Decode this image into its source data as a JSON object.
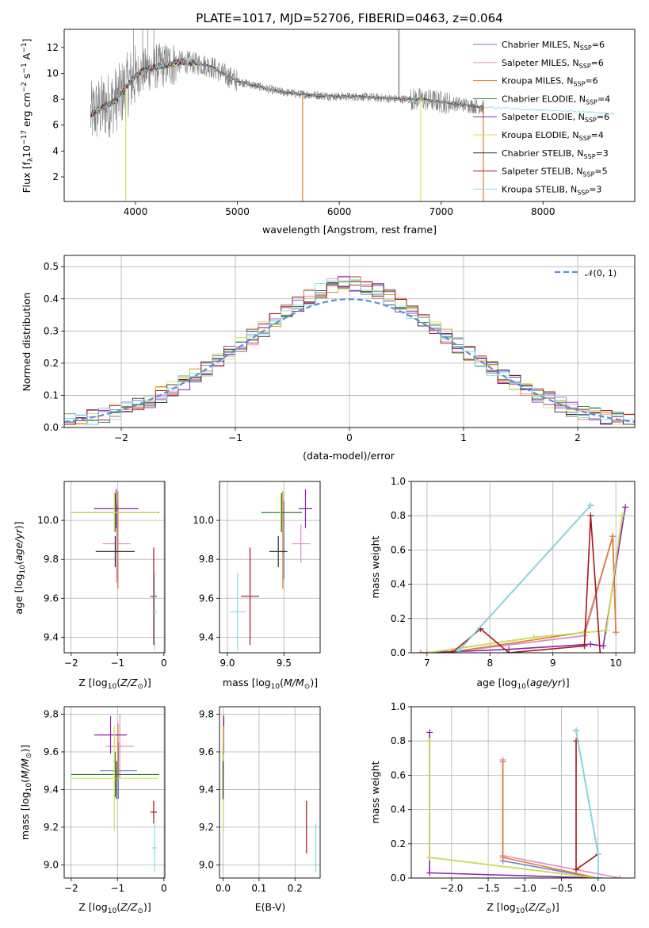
{
  "colors": {
    "spectrum_data": "#808080",
    "normal_curve": "#5b8fd9",
    "grid": "#b0b0b0",
    "models": [
      "#6a7fd6",
      "#e58ac9",
      "#e0812f",
      "#2e7d32",
      "#8e24aa",
      "#d4e157",
      "#333333",
      "#a4161a",
      "#80deea"
    ]
  },
  "models": [
    {
      "label": "Chabrier MILES, N$_{SSP}$=6",
      "text": "Chabrier MILES, N",
      "sub": "SSP",
      "n": "=6"
    },
    {
      "label": "Salpeter MILES, N$_{SSP}$=6",
      "text": "Salpeter MILES, N",
      "sub": "SSP",
      "n": "=6"
    },
    {
      "label": "Kroupa MILES, N$_{SSP}$=6",
      "text": "Kroupa MILES, N",
      "sub": "SSP",
      "n": "=6"
    },
    {
      "label": "Chabrier ELODIE, N$_{SSP}$=4",
      "text": "Chabrier ELODIE, N",
      "sub": "SSP",
      "n": "=4"
    },
    {
      "label": "Salpeter ELODIE, N$_{SSP}$=6",
      "text": "Salpeter ELODIE, N",
      "sub": "SSP",
      "n": "=6"
    },
    {
      "label": "Kroupa ELODIE, N$_{SSP}$=4",
      "text": "Kroupa ELODIE, N",
      "sub": "SSP",
      "n": "=4"
    },
    {
      "label": "Chabrier STELIB, N$_{SSP}$=3",
      "text": "Chabrier STELIB, N",
      "sub": "SSP",
      "n": "=3"
    },
    {
      "label": "Salpeter STELIB, N$_{SSP}$=5",
      "text": "Salpeter STELIB, N",
      "sub": "SSP",
      "n": "=5"
    },
    {
      "label": "Kroupa STELIB, N$_{SSP}$=3",
      "text": "Kroupa STELIB, N",
      "sub": "SSP",
      "n": "=3"
    }
  ],
  "chart_data": [
    {
      "id": "spectrum",
      "type": "line",
      "title": "PLATE=1017, MJD=52706, FIBERID=0463, z=0.064",
      "xlabel": "wavelength [Angstrom, rest frame]",
      "ylabel": "Flux [f$_\\lambda$10$^{-17}$ erg cm$^{-2}$ s$^{-1}$ A$^{-1}$]",
      "xlim": [
        3300,
        8900
      ],
      "ylim": [
        0.1,
        13.4
      ],
      "xticks": [
        4000,
        5000,
        6000,
        7000,
        8000
      ],
      "yticks": [
        2,
        4,
        6,
        8,
        10,
        12
      ],
      "continuum": {
        "x": [
          3560,
          3650,
          3750,
          3850,
          3950,
          4050,
          4150,
          4250,
          4350,
          4450,
          4550,
          4650,
          4750,
          4850,
          5000,
          5200,
          5400,
          5600,
          5800,
          6000,
          6200,
          6400,
          6600,
          6800,
          7000,
          7200,
          7400
        ],
        "y": [
          6.8,
          7.3,
          7.6,
          8.3,
          9.4,
          10.1,
          10.4,
          10.6,
          10.7,
          10.9,
          10.8,
          10.7,
          10.5,
          10.0,
          9.4,
          9.0,
          8.6,
          8.4,
          8.3,
          8.2,
          8.2,
          8.1,
          8.0,
          8.0,
          7.8,
          7.6,
          7.4
        ]
      },
      "dips": [
        {
          "x": 3905,
          "y": 0.1
        },
        {
          "x": 5640,
          "y": 0.1
        },
        {
          "x": 6800,
          "y": 0.1
        },
        {
          "x": 7415,
          "y": 0.1
        }
      ],
      "legend": "upper-right"
    },
    {
      "id": "residuals",
      "type": "histogram",
      "xlabel": "(data-model)/error",
      "ylabel": "Normed distribution",
      "xlim": [
        -2.5,
        2.5
      ],
      "ylim": [
        0,
        0.535
      ],
      "xticks": [
        -2,
        -1,
        0,
        1,
        2
      ],
      "yticks": [
        0.0,
        0.1,
        0.2,
        0.3,
        0.4,
        0.5
      ],
      "bin_width": 0.1,
      "curve_label": "$\\mathcal{N}(0,1)$",
      "legend": "upper-right"
    },
    {
      "id": "age-vs-Z",
      "type": "errorbar",
      "xlabel": "Z [log$_{10}$(Z/Z$_\\odot$)]",
      "ylabel": "age  [log$_{10}$(age/yr)]",
      "xlim": [
        -2.15,
        0.02
      ],
      "ylim": [
        9.32,
        10.2
      ],
      "xticks": [
        -2,
        -1,
        0
      ],
      "yticks": [
        9.4,
        9.6,
        9.8,
        10.0
      ],
      "points": [
        {
          "model": 0,
          "x": -1.0,
          "xerr": 0.0,
          "y": 9.9,
          "yerr": 0.2
        },
        {
          "model": 1,
          "x": -1.02,
          "xerr": 0.3,
          "y": 9.88,
          "yerr": 0.2
        },
        {
          "model": 2,
          "x": -0.99,
          "xerr": 0.0,
          "y": 9.9,
          "yerr": 0.25
        },
        {
          "model": 3,
          "x": -1.05,
          "xerr": 0.95,
          "y": 10.04,
          "yerr": 0.1
        },
        {
          "model": 4,
          "x": -1.03,
          "xerr": 0.48,
          "y": 10.06,
          "yerr": 0.1
        },
        {
          "model": 5,
          "x": -1.07,
          "xerr": 0.95,
          "y": 10.04,
          "yerr": 0.1
        },
        {
          "model": 6,
          "x": -1.05,
          "xerr": 0.42,
          "y": 9.84,
          "yerr": 0.08
        },
        {
          "model": 7,
          "x": -0.22,
          "xerr": 0.07,
          "y": 9.61,
          "yerr": 0.25
        },
        {
          "model": 8,
          "x": -0.2,
          "xerr": 0.05,
          "y": 9.53,
          "yerr": 0.2
        }
      ]
    },
    {
      "id": "age-vs-mass",
      "type": "errorbar",
      "xlabel": "mass [log$_{10}$(M/M$_\\odot$)]",
      "xlim": [
        8.93,
        9.82
      ],
      "ylim": [
        9.32,
        10.2
      ],
      "xticks": [
        9.0,
        9.5
      ],
      "yticks": [
        9.4,
        9.6,
        9.8,
        10.0
      ],
      "points": [
        {
          "model": 0,
          "x": 9.5,
          "xerr": 0.0,
          "y": 9.9,
          "yerr": 0.2
        },
        {
          "model": 1,
          "x": 9.65,
          "xerr": 0.08,
          "y": 9.88,
          "yerr": 0.1
        },
        {
          "model": 2,
          "x": 9.49,
          "xerr": 0.0,
          "y": 9.9,
          "yerr": 0.25
        },
        {
          "model": 3,
          "x": 9.48,
          "xerr": 0.18,
          "y": 10.04,
          "yerr": 0.1
        },
        {
          "model": 4,
          "x": 9.69,
          "xerr": 0.06,
          "y": 10.06,
          "yerr": 0.1
        },
        {
          "model": 5,
          "x": 9.47,
          "xerr": 0.0,
          "y": 10.04,
          "yerr": 0.1
        },
        {
          "model": 6,
          "x": 9.45,
          "xerr": 0.08,
          "y": 9.84,
          "yerr": 0.08
        },
        {
          "model": 7,
          "x": 9.2,
          "xerr": 0.08,
          "y": 9.61,
          "yerr": 0.25
        },
        {
          "model": 8,
          "x": 9.09,
          "xerr": 0.07,
          "y": 9.53,
          "yerr": 0.2
        }
      ]
    },
    {
      "id": "weight-vs-age",
      "type": "line",
      "xlabel": "age  [log$_{10}$(age/yr)]",
      "ylabel": "mass weight",
      "xlim": [
        6.75,
        10.3
      ],
      "ylim": [
        0,
        1
      ],
      "xticks": [
        7,
        8,
        9,
        10
      ],
      "yticks": [
        0.0,
        0.2,
        0.4,
        0.6,
        0.8,
        1.0
      ],
      "series": [
        {
          "model": 0,
          "x": [
            6.9,
            7.5,
            9.5,
            9.95,
            10.0
          ],
          "y": [
            0.0,
            0.01,
            0.1,
            0.68,
            0.12
          ]
        },
        {
          "model": 1,
          "x": [
            6.9,
            7.5,
            9.5,
            9.95,
            10.0
          ],
          "y": [
            0.0,
            0.01,
            0.1,
            0.68,
            0.12
          ]
        },
        {
          "model": 2,
          "x": [
            6.9,
            7.5,
            9.5,
            9.95,
            10.0
          ],
          "y": [
            0.0,
            0.01,
            0.12,
            0.68,
            0.12
          ]
        },
        {
          "model": 3,
          "x": [
            7.0,
            8.7,
            9.85,
            10.1
          ],
          "y": [
            0.0,
            0.09,
            0.13,
            0.8
          ]
        },
        {
          "model": 4,
          "x": [
            7.0,
            8.3,
            9.6,
            9.8,
            10.15
          ],
          "y": [
            0.0,
            0.02,
            0.05,
            0.04,
            0.85
          ]
        },
        {
          "model": 5,
          "x": [
            7.0,
            8.7,
            9.85,
            10.1
          ],
          "y": [
            0.0,
            0.09,
            0.13,
            0.8
          ]
        },
        {
          "model": 6,
          "x": [
            7.5,
            9.6
          ],
          "y": [
            0.01,
            0.86
          ]
        },
        {
          "model": 7,
          "x": [
            7.4,
            7.85,
            8.3,
            9.5,
            9.6,
            9.75
          ],
          "y": [
            0.0,
            0.14,
            0.0,
            0.04,
            0.8,
            0.0
          ]
        },
        {
          "model": 8,
          "x": [
            7.5,
            9.6
          ],
          "y": [
            0.01,
            0.86
          ]
        }
      ]
    },
    {
      "id": "mass-vs-Z",
      "type": "errorbar",
      "xlabel": "Z [log$_{10}$(Z/Z$_\\odot$)]",
      "ylabel": "mass [log$_{10}$(M/M$_\\odot$)]",
      "xlim": [
        -2.15,
        0.02
      ],
      "ylim": [
        8.93,
        9.84
      ],
      "xticks": [
        -2,
        -1,
        0
      ],
      "yticks": [
        9.0,
        9.2,
        9.4,
        9.6,
        9.8
      ],
      "points": [
        {
          "model": 0,
          "x": -0.98,
          "xerr": 0.4,
          "y": 9.5,
          "yerr": 0.15
        },
        {
          "model": 1,
          "x": -0.95,
          "xerr": 0.3,
          "y": 9.63,
          "yerr": 0.17
        },
        {
          "model": 2,
          "x": -0.99,
          "xerr": 0.0,
          "y": 9.6,
          "yerr": 0.15
        },
        {
          "model": 3,
          "x": -1.05,
          "xerr": 0.95,
          "y": 9.48,
          "yerr": 0.12
        },
        {
          "model": 4,
          "x": -1.15,
          "xerr": 0.35,
          "y": 9.69,
          "yerr": 0.1
        },
        {
          "model": 5,
          "x": -1.07,
          "xerr": 0.95,
          "y": 9.46,
          "yerr": 0.28
        },
        {
          "model": 6,
          "x": -1.02,
          "xerr": 0.0,
          "y": 9.45,
          "yerr": 0.1
        },
        {
          "model": 7,
          "x": -0.22,
          "xerr": 0.07,
          "y": 9.28,
          "yerr": 0.06
        },
        {
          "model": 8,
          "x": -0.2,
          "xerr": 0.05,
          "y": 9.09,
          "yerr": 0.13
        }
      ]
    },
    {
      "id": "mass-vs-ebv",
      "type": "errorbar",
      "xlabel": "E(B-V)",
      "xlim": [
        -0.01,
        0.27
      ],
      "ylim": [
        8.93,
        9.84
      ],
      "xticks": [
        0.0,
        0.1,
        0.2
      ],
      "yticks": [
        9.0,
        9.2,
        9.4,
        9.6,
        9.8
      ],
      "points": [
        {
          "model": 0,
          "x": 0.0,
          "yerr": 0.15,
          "y": 9.5
        },
        {
          "model": 1,
          "x": 0.001,
          "yerr": 0.17,
          "y": 9.63
        },
        {
          "model": 2,
          "x": 0.0,
          "yerr": 0.15,
          "y": 9.6
        },
        {
          "model": 3,
          "x": 0.0,
          "yerr": 0.12,
          "y": 9.48
        },
        {
          "model": 4,
          "x": 0.002,
          "yerr": 0.1,
          "y": 9.69
        },
        {
          "model": 5,
          "x": 0.001,
          "yerr": 0.28,
          "y": 9.46
        },
        {
          "model": 6,
          "x": 0.0,
          "yerr": 0.1,
          "y": 9.45
        },
        {
          "model": 7,
          "x": 0.232,
          "yerr": 0.14,
          "y": 9.2
        },
        {
          "model": 8,
          "x": 0.258,
          "yerr": 0.13,
          "y": 9.09
        }
      ]
    },
    {
      "id": "weight-vs-Z",
      "type": "line",
      "xlabel": "Z [log$_{10}$(Z/Z$_\\odot$)]",
      "ylabel": "mass weight",
      "xlim": [
        -2.55,
        0.5
      ],
      "ylim": [
        0,
        1
      ],
      "xticks": [
        -2.0,
        -1.5,
        -1.0,
        -0.5,
        0.0
      ],
      "yticks": [
        0.0,
        0.2,
        0.4,
        0.6,
        0.8,
        1.0
      ],
      "series": [
        {
          "model": 0,
          "x": [
            -1.3,
            -1.3,
            0.0,
            0.0
          ],
          "y": [
            0.68,
            0.1,
            0.0,
            0.0
          ]
        },
        {
          "model": 1,
          "x": [
            -1.3,
            -1.3,
            0.3
          ],
          "y": [
            0.69,
            0.13,
            0.0
          ]
        },
        {
          "model": 2,
          "x": [
            -1.3,
            -1.3,
            0.0
          ],
          "y": [
            0.68,
            0.12,
            0.0
          ]
        },
        {
          "model": 3,
          "x": [
            -2.3,
            -2.3,
            0.0
          ],
          "y": [
            0.8,
            0.12,
            0.0
          ]
        },
        {
          "model": 4,
          "x": [
            -2.3,
            -2.3,
            0.0
          ],
          "y": [
            0.85,
            0.03,
            0.0
          ]
        },
        {
          "model": 5,
          "x": [
            -2.3,
            -2.3,
            0.0
          ],
          "y": [
            0.8,
            0.12,
            0.0
          ]
        },
        {
          "model": 6,
          "x": [
            -0.3,
            0.0,
            0.0
          ],
          "y": [
            0.86,
            0.14,
            0.0
          ]
        },
        {
          "model": 7,
          "x": [
            -0.3,
            -0.3,
            0.0
          ],
          "y": [
            0.8,
            0.05,
            0.14
          ]
        },
        {
          "model": 8,
          "x": [
            -0.3,
            0.0,
            0.0
          ],
          "y": [
            0.86,
            0.14,
            0.0
          ]
        }
      ]
    }
  ]
}
